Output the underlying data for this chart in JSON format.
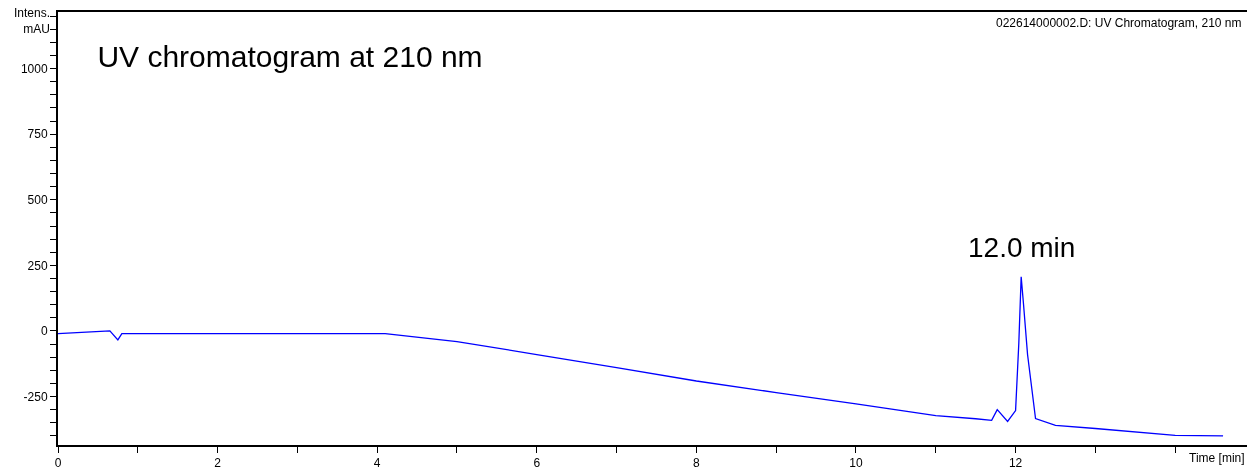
{
  "chart_data": {
    "type": "line",
    "title": "UV chromatogram at 210 nm",
    "xlabel": "Time [min]",
    "ylabel": "Intens.\nmAU",
    "annotations": [
      "022614000002.D: UV Chromatogram, 210 nm",
      {
        "text": "12.0 min",
        "x": 12.07,
        "y": 206
      }
    ],
    "x": [
      0,
      0.65,
      0.75,
      0.8,
      4.1,
      5,
      6,
      7,
      8,
      9,
      10,
      11,
      11.5,
      11.7,
      11.77,
      11.9,
      12.0,
      12.04,
      12.07,
      12.1,
      12.15,
      12.25,
      12.5,
      13,
      14,
      14.6
    ],
    "series": [
      {
        "color": "#0000ff",
        "values": [
          -10,
          0,
          -34,
          -10,
          -10,
          -41,
          -90,
          -140,
          -191,
          -235,
          -278,
          -323,
          -335,
          -341,
          -300,
          -345,
          -304,
          -50,
          206,
          100,
          -90,
          -334,
          -360,
          -372,
          -398,
          -400
        ]
      }
    ],
    "xlim": [
      0,
      14.9
    ],
    "ylim": [
      -435,
      1216
    ],
    "xticks": [
      0,
      {
        "value": 1,
        "label": null
      },
      2,
      {
        "value": 3,
        "label": null
      },
      4,
      {
        "value": 5,
        "label": null
      },
      6,
      {
        "value": 7,
        "label": null
      },
      8,
      {
        "value": 9,
        "label": null
      },
      10,
      {
        "value": 11,
        "label": null
      },
      12,
      {
        "value": 13,
        "label": null
      },
      {
        "value": 14,
        "label": null
      }
    ],
    "yticks": [
      {
        "value": -400,
        "label": null
      },
      {
        "value": -350,
        "label": null
      },
      {
        "value": -300,
        "label": null
      },
      -250,
      {
        "value": -200,
        "label": null
      },
      {
        "value": -150,
        "label": null
      },
      {
        "value": -100,
        "label": null
      },
      {
        "value": -50,
        "label": null
      },
      0,
      {
        "value": 50,
        "label": null
      },
      {
        "value": 100,
        "label": null
      },
      {
        "value": 150,
        "label": null
      },
      {
        "value": 200,
        "label": null
      },
      250,
      {
        "value": 300,
        "label": null
      },
      {
        "value": 350,
        "label": null
      },
      {
        "value": 400,
        "label": null
      },
      {
        "value": 450,
        "label": null
      },
      500,
      {
        "value": 550,
        "label": null
      },
      {
        "value": 600,
        "label": null
      },
      {
        "value": 650,
        "label": null
      },
      {
        "value": 700,
        "label": null
      },
      750,
      {
        "value": 800,
        "label": null
      },
      {
        "value": 850,
        "label": null
      },
      {
        "value": 900,
        "label": null
      },
      {
        "value": 950,
        "label": null
      },
      1000,
      {
        "value": 1050,
        "label": null
      },
      {
        "value": 1100,
        "label": null
      },
      {
        "value": 1150,
        "label": null
      },
      {
        "value": 1200,
        "label": null
      }
    ],
    "marker": "none",
    "line_style": "solid"
  }
}
